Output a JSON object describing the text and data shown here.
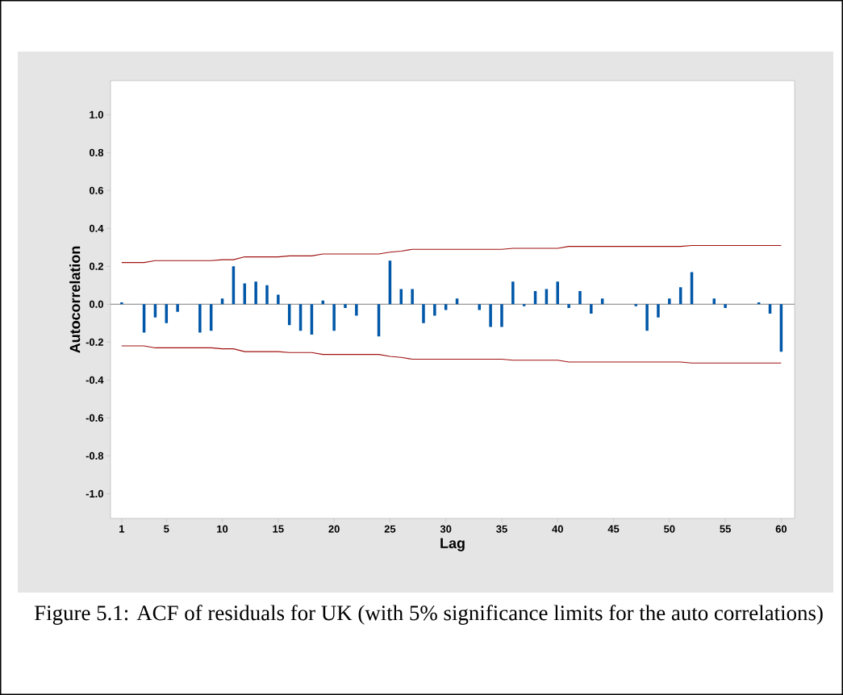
{
  "chart_data": {
    "type": "bar",
    "xlabel": "Lag",
    "ylabel": "Autocorrelation",
    "annotations": [
      "Figure 5.1: ACF of residuals for UK (with 5% significance limits for the auto correlations)"
    ],
    "x": [
      1,
      2,
      3,
      4,
      5,
      6,
      7,
      8,
      9,
      10,
      11,
      12,
      13,
      14,
      15,
      16,
      17,
      18,
      19,
      20,
      21,
      22,
      23,
      24,
      25,
      26,
      27,
      28,
      29,
      30,
      31,
      32,
      33,
      34,
      35,
      36,
      37,
      38,
      39,
      40,
      41,
      42,
      43,
      44,
      45,
      46,
      47,
      48,
      49,
      50,
      51,
      52,
      53,
      54,
      55,
      56,
      57,
      58,
      59,
      60
    ],
    "series": [
      {
        "color": "#0057a8",
        "values": [
          0.01,
          0,
          -0.15,
          -0.07,
          -0.1,
          -0.04,
          0,
          -0.15,
          -0.14,
          0.03,
          0.2,
          0.11,
          0.12,
          0.1,
          0.05,
          -0.11,
          -0.14,
          -0.16,
          0.02,
          -0.14,
          -0.02,
          -0.06,
          0,
          -0.17,
          0.23,
          0.08,
          0.08,
          -0.1,
          -0.06,
          -0.03,
          0.03,
          0,
          -0.03,
          -0.12,
          -0.12,
          0.12,
          -0.01,
          0.07,
          0.08,
          0.12,
          -0.02,
          0.07,
          -0.05,
          0.03,
          0,
          0,
          -0.01,
          -0.14,
          -0.07,
          0.03,
          0.09,
          0.17,
          0,
          0.03,
          -0.02,
          0,
          0,
          0.01,
          -0.05,
          -0.25
        ]
      },
      {
        "type": "line",
        "color": "#a01010",
        "values": [
          0.22,
          0.22,
          0.22,
          0.23,
          0.23,
          0.23,
          0.23,
          0.23,
          0.23,
          0.235,
          0.235,
          0.25,
          0.25,
          0.25,
          0.25,
          0.255,
          0.255,
          0.255,
          0.265,
          0.265,
          0.265,
          0.265,
          0.265,
          0.265,
          0.275,
          0.28,
          0.29,
          0.29,
          0.29,
          0.29,
          0.29,
          0.29,
          0.29,
          0.29,
          0.29,
          0.295,
          0.295,
          0.295,
          0.295,
          0.295,
          0.305,
          0.305,
          0.305,
          0.305,
          0.305,
          0.305,
          0.305,
          0.305,
          0.305,
          0.305,
          0.305,
          0.31,
          0.31,
          0.31,
          0.31,
          0.31,
          0.31,
          0.31,
          0.31,
          0.31
        ]
      },
      {
        "type": "line",
        "color": "#a01010",
        "values": [
          -0.22,
          -0.22,
          -0.22,
          -0.23,
          -0.23,
          -0.23,
          -0.23,
          -0.23,
          -0.23,
          -0.235,
          -0.235,
          -0.25,
          -0.25,
          -0.25,
          -0.25,
          -0.255,
          -0.255,
          -0.255,
          -0.265,
          -0.265,
          -0.265,
          -0.265,
          -0.265,
          -0.265,
          -0.275,
          -0.28,
          -0.29,
          -0.29,
          -0.29,
          -0.29,
          -0.29,
          -0.29,
          -0.29,
          -0.29,
          -0.29,
          -0.295,
          -0.295,
          -0.295,
          -0.295,
          -0.295,
          -0.305,
          -0.305,
          -0.305,
          -0.305,
          -0.305,
          -0.305,
          -0.305,
          -0.305,
          -0.305,
          -0.305,
          -0.305,
          -0.31,
          -0.31,
          -0.31,
          -0.31,
          -0.31,
          -0.31,
          -0.31,
          -0.31,
          -0.31
        ]
      }
    ],
    "ref_lines": [
      {
        "axis": "y",
        "value": 0,
        "color": "#999999"
      }
    ],
    "xlim": [
      0,
      61.2
    ],
    "ylim": [
      -1.13,
      1.18
    ],
    "xticks": [
      1,
      5,
      10,
      15,
      20,
      25,
      30,
      35,
      40,
      45,
      50,
      55,
      60
    ],
    "yticks": [
      {
        "value": -1.0,
        "label": "-1.0"
      },
      {
        "value": -0.8,
        "label": "-0.8"
      },
      {
        "value": -0.6,
        "label": "-0.6"
      },
      {
        "value": -0.4,
        "label": "-0.4"
      },
      {
        "value": -0.2,
        "label": "-0.2"
      },
      {
        "value": 0.0,
        "label": "0.0"
      },
      {
        "value": 0.2,
        "label": "0.2"
      },
      {
        "value": 0.4,
        "label": "0.4"
      },
      {
        "value": 0.6,
        "label": "0.6"
      },
      {
        "value": 0.8,
        "label": "0.8"
      },
      {
        "value": 1.0,
        "label": "1.0"
      }
    ]
  }
}
